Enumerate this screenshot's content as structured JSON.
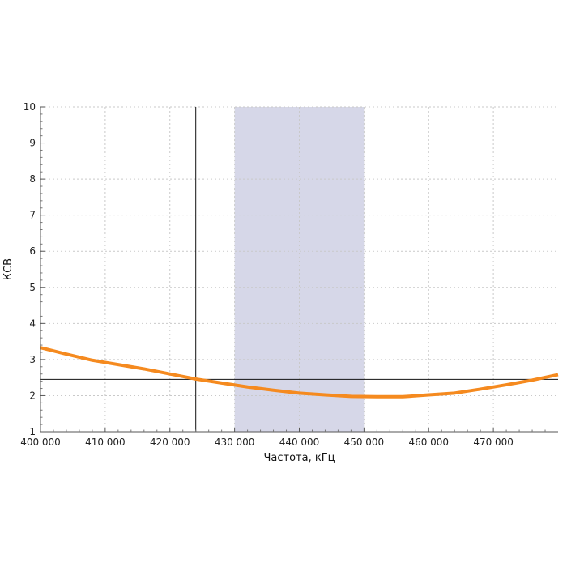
{
  "chart_data": {
    "type": "line",
    "title": "",
    "xlabel": "Частота, кГц",
    "ylabel": "КСВ",
    "xlim": [
      400000,
      480000
    ],
    "ylim": [
      1,
      10
    ],
    "grid": true,
    "x_ticks": [
      400000,
      410000,
      420000,
      430000,
      440000,
      450000,
      460000,
      470000
    ],
    "x_tick_labels": [
      "400 000",
      "410 000",
      "420 000",
      "430 000",
      "440 000",
      "450 000",
      "460 000",
      "470 000"
    ],
    "y_ticks": [
      1,
      2,
      3,
      4,
      5,
      6,
      7,
      8,
      9,
      10
    ],
    "y_tick_labels": [
      "1",
      "2",
      "3",
      "4",
      "5",
      "6",
      "7",
      "8",
      "9",
      "10"
    ],
    "highlight_band": {
      "x_from": 430000,
      "x_to": 450000,
      "color": "#d6d7e8"
    },
    "reference_lines": {
      "vertical_x": 424000,
      "horizontal_y": 2.45,
      "color": "#111111"
    },
    "series": [
      {
        "color": "#f58a1f",
        "x": [
          400000,
          404000,
          408000,
          412000,
          416000,
          420000,
          424000,
          428000,
          432000,
          436000,
          440000,
          444000,
          448000,
          452000,
          456000,
          460000,
          464000,
          468000,
          472000,
          476000,
          480000
        ],
        "y": [
          3.33,
          3.15,
          2.98,
          2.86,
          2.74,
          2.6,
          2.46,
          2.35,
          2.24,
          2.15,
          2.07,
          2.02,
          1.98,
          1.97,
          1.97,
          2.02,
          2.07,
          2.18,
          2.3,
          2.43,
          2.58
        ]
      }
    ]
  }
}
